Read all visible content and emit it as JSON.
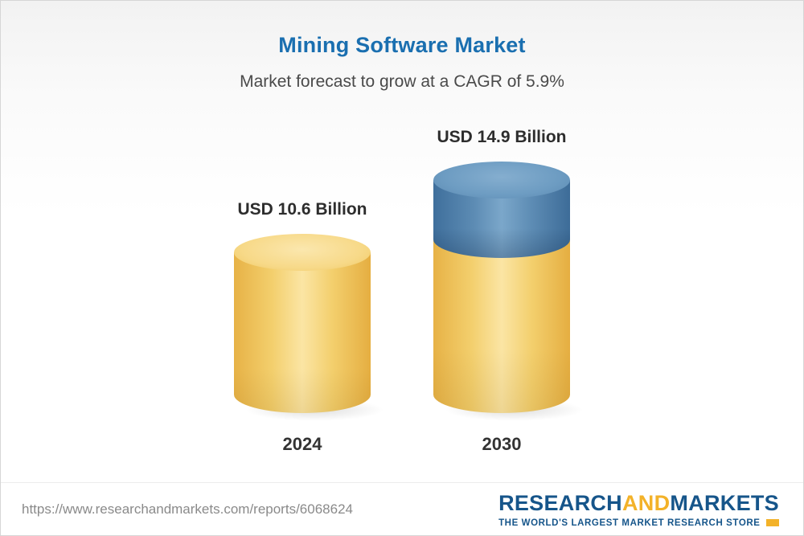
{
  "page": {
    "title": "Mining Software Market",
    "subtitle": "Market forecast to grow at a CAGR of 5.9%"
  },
  "chart_data": {
    "type": "bar",
    "categories": [
      "2024",
      "2030"
    ],
    "values": [
      10.6,
      14.9
    ],
    "unit": "USD Billion",
    "series": [
      {
        "name": "2024",
        "value": 10.6,
        "label": "USD 10.6 Billion",
        "color": "#f3cf6d"
      },
      {
        "name": "2030",
        "value": 14.9,
        "label": "USD 14.9 Billion",
        "colors": [
          "#5d8cb4",
          "#f3cf6d"
        ]
      }
    ],
    "title": "Mining Software Market",
    "subtitle": "Market forecast to grow at a CAGR of 5.9%",
    "cagr": "5.9%",
    "xlabel": "",
    "ylabel": "",
    "legend_position": "none",
    "grid": false,
    "bar_style": "3d-cylinder",
    "growth_segment_color": "#5d8cb4",
    "base_color": "#f3cf6d"
  },
  "footer": {
    "url": "https://www.researchandmarkets.com/reports/6068624",
    "logo": {
      "research": "RESEARCH",
      "and": "AND",
      "markets": "MARKETS",
      "tagline": "THE WORLD'S LARGEST MARKET RESEARCH STORE",
      "blue": "#16558a",
      "gold": "#f3b229"
    }
  }
}
